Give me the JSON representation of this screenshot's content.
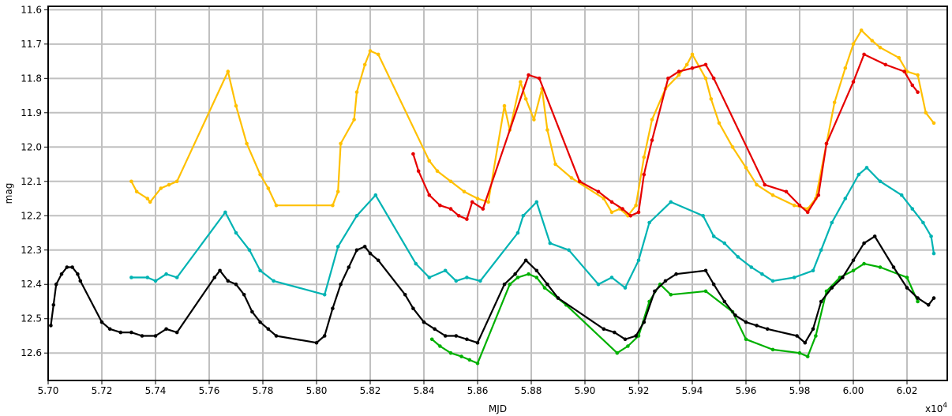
{
  "chart_data": {
    "type": "line",
    "title": "",
    "xlabel": "MJD",
    "ylabel": "mag",
    "x_multiplier_label": "x10",
    "x_multiplier_exponent": "4",
    "xlim": [
      5.7,
      6.035
    ],
    "ylim": [
      12.68,
      11.59
    ],
    "y_inverted": true,
    "grid": true,
    "xticks": [
      "5.70",
      "5.72",
      "5.74",
      "5.76",
      "5.78",
      "5.80",
      "5.82",
      "5.84",
      "5.86",
      "5.88",
      "5.90",
      "5.92",
      "5.94",
      "5.96",
      "5.98",
      "6.00",
      "6.02"
    ],
    "yticks": [
      "11.6",
      "11.7",
      "11.8",
      "11.9",
      "12.0",
      "12.1",
      "12.2",
      "12.3",
      "12.4",
      "12.5",
      "12.6"
    ],
    "series": [
      {
        "color": "#ffc000",
        "x": [
          5.731,
          5.733,
          5.737,
          5.738,
          5.742,
          5.745,
          5.748,
          5.767,
          5.77,
          5.774,
          5.779,
          5.782,
          5.785,
          5.806,
          5.808,
          5.809,
          5.814,
          5.815,
          5.818,
          5.82,
          5.823,
          5.842,
          5.845,
          5.85,
          5.855,
          5.86,
          5.864,
          5.87,
          5.872,
          5.876,
          5.878,
          5.881,
          5.884,
          5.886,
          5.889,
          5.895,
          5.907,
          5.91,
          5.913,
          5.916,
          5.919,
          5.922,
          5.925,
          5.93,
          5.935,
          5.938,
          5.94,
          5.945,
          5.947,
          5.95,
          5.955,
          5.96,
          5.964,
          5.97,
          5.978,
          5.983,
          5.986,
          5.99,
          5.993,
          5.997,
          6.0,
          6.003,
          6.007,
          6.01,
          6.017,
          6.02,
          6.024,
          6.027,
          6.03
        ],
        "y": [
          12.1,
          12.13,
          12.15,
          12.16,
          12.12,
          12.11,
          12.1,
          11.78,
          11.88,
          11.99,
          12.08,
          12.12,
          12.17,
          12.17,
          12.13,
          11.99,
          11.92,
          11.84,
          11.76,
          11.72,
          11.73,
          12.04,
          12.07,
          12.1,
          12.13,
          12.15,
          12.16,
          11.88,
          11.95,
          11.81,
          11.86,
          11.92,
          11.83,
          11.95,
          12.05,
          12.09,
          12.15,
          12.19,
          12.18,
          12.2,
          12.17,
          12.03,
          11.92,
          11.83,
          11.79,
          11.76,
          11.73,
          11.8,
          11.86,
          11.93,
          12.0,
          12.06,
          12.11,
          12.14,
          12.17,
          12.18,
          12.15,
          11.99,
          11.87,
          11.77,
          11.7,
          11.66,
          11.69,
          11.71,
          11.74,
          11.78,
          11.79,
          11.9,
          11.93
        ]
      },
      {
        "color": "#e60000",
        "x": [
          5.836,
          5.838,
          5.842,
          5.846,
          5.85,
          5.853,
          5.856,
          5.858,
          5.862,
          5.879,
          5.883,
          5.898,
          5.905,
          5.91,
          5.914,
          5.917,
          5.92,
          5.922,
          5.925,
          5.931,
          5.935,
          5.94,
          5.945,
          5.948,
          5.967,
          5.975,
          5.98,
          5.983,
          5.987,
          5.99,
          6.0,
          6.004,
          6.012,
          6.019,
          6.022,
          6.024
        ],
        "y": [
          12.02,
          12.07,
          12.14,
          12.17,
          12.18,
          12.2,
          12.21,
          12.16,
          12.18,
          11.79,
          11.8,
          12.1,
          12.13,
          12.16,
          12.18,
          12.2,
          12.19,
          12.08,
          11.98,
          11.8,
          11.78,
          11.77,
          11.76,
          11.8,
          12.11,
          12.13,
          12.17,
          12.19,
          12.14,
          11.99,
          11.81,
          11.73,
          11.76,
          11.78,
          11.82,
          11.84
        ]
      },
      {
        "color": "#00b3b3",
        "x": [
          5.731,
          5.737,
          5.74,
          5.744,
          5.748,
          5.766,
          5.77,
          5.775,
          5.779,
          5.784,
          5.803,
          5.808,
          5.815,
          5.822,
          5.837,
          5.842,
          5.848,
          5.852,
          5.856,
          5.861,
          5.875,
          5.877,
          5.882,
          5.887,
          5.894,
          5.905,
          5.91,
          5.915,
          5.92,
          5.924,
          5.932,
          5.944,
          5.948,
          5.952,
          5.957,
          5.962,
          5.966,
          5.97,
          5.978,
          5.985,
          5.988,
          5.992,
          5.997,
          6.002,
          6.005,
          6.01,
          6.018,
          6.022,
          6.026,
          6.029,
          6.03
        ],
        "y": [
          12.38,
          12.38,
          12.39,
          12.37,
          12.38,
          12.19,
          12.25,
          12.3,
          12.36,
          12.39,
          12.43,
          12.29,
          12.2,
          12.14,
          12.34,
          12.38,
          12.36,
          12.39,
          12.38,
          12.39,
          12.25,
          12.2,
          12.16,
          12.28,
          12.3,
          12.4,
          12.38,
          12.41,
          12.33,
          12.22,
          12.16,
          12.2,
          12.26,
          12.28,
          12.32,
          12.35,
          12.37,
          12.39,
          12.38,
          12.36,
          12.3,
          12.22,
          12.15,
          12.08,
          12.06,
          12.1,
          12.14,
          12.18,
          12.22,
          12.26,
          12.31
        ]
      },
      {
        "color": "#00b000",
        "x": [
          5.843,
          5.846,
          5.85,
          5.854,
          5.857,
          5.86,
          5.872,
          5.875,
          5.879,
          5.882,
          5.885,
          5.893,
          5.912,
          5.916,
          5.92,
          5.924,
          5.928,
          5.932,
          5.945,
          5.955,
          5.96,
          5.97,
          5.98,
          5.983,
          5.986,
          5.99,
          5.995,
          6.0,
          6.004,
          6.01,
          6.02,
          6.024
        ],
        "y": [
          12.56,
          12.58,
          12.6,
          12.61,
          12.62,
          12.63,
          12.4,
          12.38,
          12.37,
          12.38,
          12.41,
          12.46,
          12.6,
          12.58,
          12.55,
          12.45,
          12.4,
          12.43,
          12.42,
          12.48,
          12.56,
          12.59,
          12.6,
          12.61,
          12.55,
          12.42,
          12.38,
          12.36,
          12.34,
          12.35,
          12.38,
          12.45
        ]
      },
      {
        "color": "#000000",
        "x": [
          5.701,
          5.702,
          5.703,
          5.705,
          5.707,
          5.709,
          5.711,
          5.712,
          5.72,
          5.723,
          5.727,
          5.731,
          5.735,
          5.74,
          5.744,
          5.748,
          5.762,
          5.764,
          5.767,
          5.77,
          5.773,
          5.776,
          5.779,
          5.782,
          5.785,
          5.8,
          5.803,
          5.806,
          5.809,
          5.812,
          5.815,
          5.818,
          5.82,
          5.823,
          5.833,
          5.836,
          5.84,
          5.844,
          5.848,
          5.852,
          5.856,
          5.86,
          5.87,
          5.874,
          5.878,
          5.882,
          5.886,
          5.89,
          5.907,
          5.911,
          5.915,
          5.919,
          5.922,
          5.926,
          5.93,
          5.934,
          5.945,
          5.948,
          5.952,
          5.956,
          5.96,
          5.964,
          5.968,
          5.979,
          5.982,
          5.985,
          5.988,
          5.992,
          5.996,
          6.0,
          6.004,
          6.008,
          6.015,
          6.02,
          6.024,
          6.028,
          6.03
        ],
        "y": [
          12.52,
          12.46,
          12.4,
          12.37,
          12.35,
          12.35,
          12.37,
          12.39,
          12.51,
          12.53,
          12.54,
          12.54,
          12.55,
          12.55,
          12.53,
          12.54,
          12.38,
          12.36,
          12.39,
          12.4,
          12.43,
          12.48,
          12.51,
          12.53,
          12.55,
          12.57,
          12.55,
          12.47,
          12.4,
          12.35,
          12.3,
          12.29,
          12.31,
          12.33,
          12.43,
          12.47,
          12.51,
          12.53,
          12.55,
          12.55,
          12.56,
          12.57,
          12.4,
          12.37,
          12.33,
          12.36,
          12.4,
          12.44,
          12.53,
          12.54,
          12.56,
          12.55,
          12.51,
          12.42,
          12.39,
          12.37,
          12.36,
          12.4,
          12.45,
          12.49,
          12.51,
          12.52,
          12.53,
          12.55,
          12.57,
          12.53,
          12.45,
          12.41,
          12.38,
          12.33,
          12.28,
          12.26,
          12.35,
          12.41,
          12.44,
          12.46,
          12.44
        ]
      }
    ]
  }
}
